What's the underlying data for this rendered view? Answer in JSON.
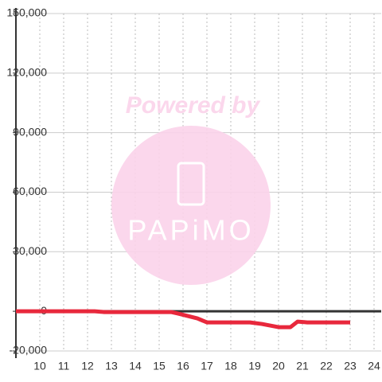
{
  "chart_data": {
    "type": "line",
    "x": [
      9,
      12.3,
      12.7,
      15.5,
      15.8,
      16.2,
      16.6,
      17,
      18.8,
      19.3,
      20,
      20.5,
      20.8,
      21.2,
      23
    ],
    "series": [
      {
        "color": "#e8283c",
        "values": [
          0,
          0,
          -400,
          -400,
          -1200,
          -2400,
          -3600,
          -5600,
          -5600,
          -6400,
          -8000,
          -8000,
          -5200,
          -5600,
          -5600
        ]
      }
    ],
    "xlim": [
      9,
      24.3
    ],
    "xticks": [
      10,
      11,
      12,
      13,
      14,
      15,
      16,
      17,
      18,
      19,
      20,
      21,
      22,
      23,
      24
    ],
    "ylim": [
      -20000,
      150000
    ],
    "yticks": [
      {
        "value": -20000,
        "label": "-20,000"
      },
      0,
      {
        "value": 30000,
        "label": "30,000"
      },
      {
        "value": 60000,
        "label": "60,000"
      },
      {
        "value": 90000,
        "label": "90,000"
      },
      {
        "value": 120000,
        "label": "120,000"
      },
      {
        "value": 150000,
        "label": "150,000"
      }
    ],
    "grid": true
  },
  "watermark": {
    "text": "Powered by",
    "logo": "PAPiMO"
  }
}
